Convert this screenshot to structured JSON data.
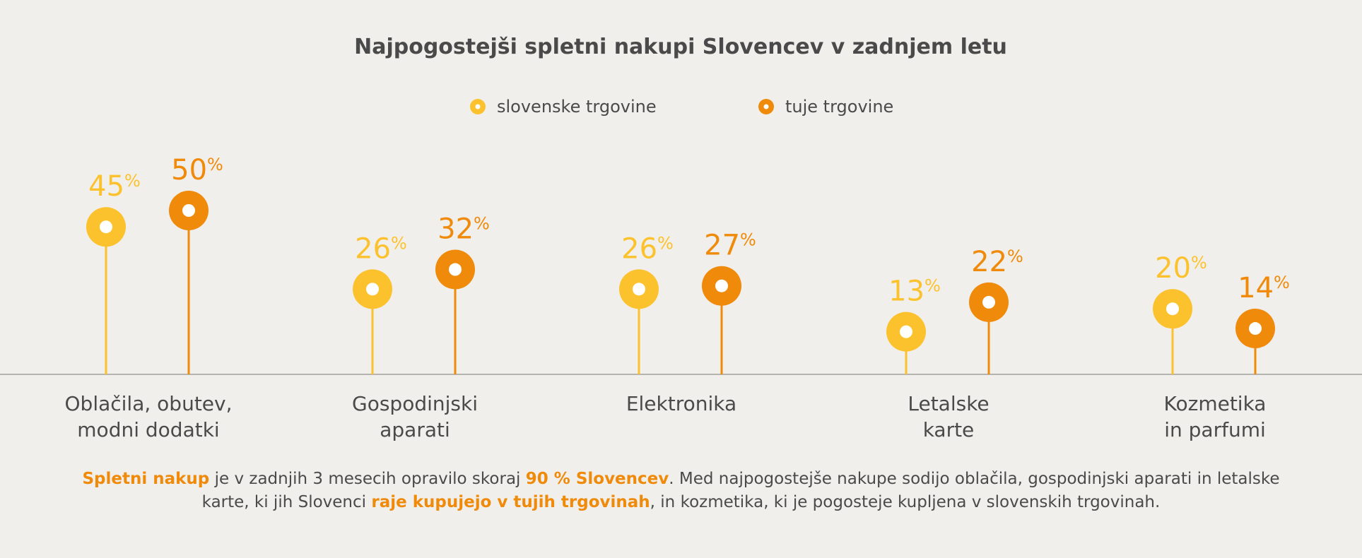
{
  "chart_data": {
    "type": "lollipop",
    "title": "Najpogostejši spletni nakupi Slovencev v zadnjem letu",
    "categories": [
      [
        "Oblačila, obutev,",
        "modni dodatki"
      ],
      [
        "Gospodinjski",
        "aparati"
      ],
      [
        "Elektronika"
      ],
      [
        "Letalske",
        "karte"
      ],
      [
        "Kozmetika",
        "in parfumi"
      ]
    ],
    "series": [
      {
        "name": "slovenske trgovine",
        "color": "#fcc22d",
        "values": [
          45,
          26,
          26,
          13,
          20
        ]
      },
      {
        "name": "tuje trgovine",
        "color": "#ef8a0a",
        "values": [
          50,
          32,
          27,
          22,
          14
        ]
      }
    ],
    "value_suffix": "%",
    "legend_position": "top-center",
    "grid": false
  },
  "footnote": {
    "p1": "Spletni nakup",
    "p2": " je v zadnjih 3 mesecih opravilo skoraj ",
    "p3": "90 % Slovencev",
    "p4": ". Med najpogostejše nakupe sodijo oblačila, gospodinjski aparati in letalske karte, ki jih Slovenci ",
    "p5": "raje kupujejo v tujih trgovinah",
    "p6": ", in kozmetika, ki je pogosteje kupljena v slovenskih trgovinah."
  }
}
